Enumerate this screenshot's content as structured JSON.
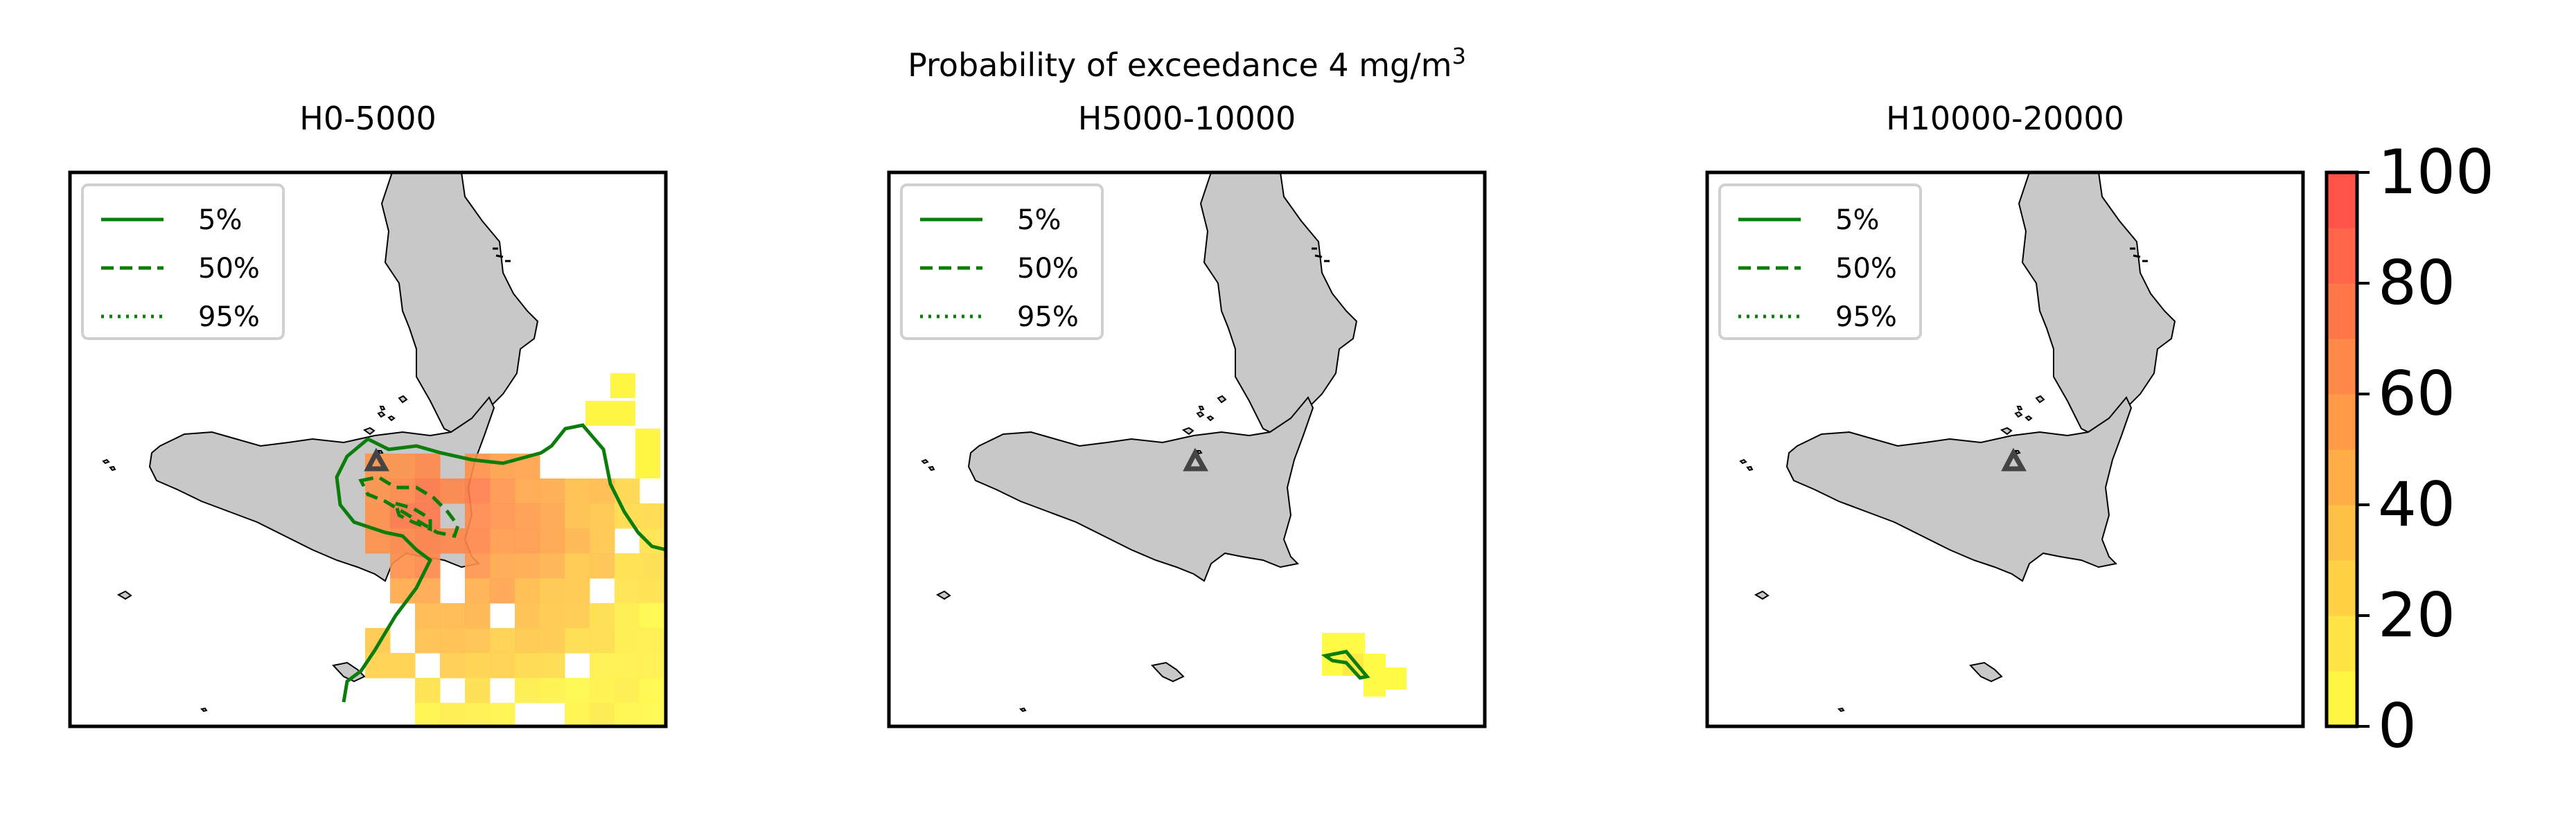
{
  "figure": {
    "suptitle_prefix": "Probability of exceedance 4 mg/m",
    "suptitle_sup": "3",
    "colors": {
      "land": "#c8c8c8",
      "contour": "#0a7d0a",
      "vent": "#444444",
      "ramp_low": "#ffff44",
      "ramp_high": "#ff4a4a"
    }
  },
  "panels": [
    {
      "title": "H0-5000",
      "legend": [
        {
          "label": "5%",
          "style": "solid"
        },
        {
          "label": "50%",
          "style": "dashed"
        },
        {
          "label": "95%",
          "style": "dotted"
        }
      ],
      "vent_icon": "triangle-icon"
    },
    {
      "title": "H5000-10000",
      "legend": [
        {
          "label": "5%",
          "style": "solid"
        },
        {
          "label": "50%",
          "style": "dashed"
        },
        {
          "label": "95%",
          "style": "dotted"
        }
      ],
      "vent_icon": "triangle-icon"
    },
    {
      "title": "H10000-20000",
      "legend": [
        {
          "label": "5%",
          "style": "solid"
        },
        {
          "label": "50%",
          "style": "dashed"
        },
        {
          "label": "95%",
          "style": "dotted"
        }
      ],
      "vent_icon": "triangle-icon"
    }
  ],
  "colorbar": {
    "range": [
      0,
      100
    ],
    "ticks": [
      "0",
      "20",
      "40",
      "60",
      "80",
      "100"
    ]
  }
}
